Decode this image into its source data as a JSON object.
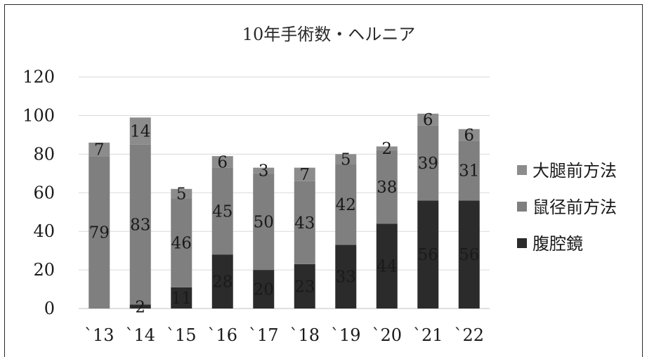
{
  "chart_data": {
    "type": "bar",
    "stacked": true,
    "title": "10年手術数・ヘルニア",
    "categories": [
      "`13",
      "`14",
      "`15",
      "`16",
      "`17",
      "`18",
      "`19",
      "`20",
      "`21",
      "`22"
    ],
    "series": [
      {
        "name": "腹腔鏡",
        "values": [
          0,
          2,
          11,
          28,
          20,
          23,
          33,
          44,
          56,
          56
        ],
        "color": "#2b2b2b"
      },
      {
        "name": "鼠径前方法",
        "values": [
          79,
          83,
          46,
          45,
          50,
          43,
          42,
          38,
          39,
          31
        ],
        "color": "#7f7f7f"
      },
      {
        "name": "大腿前方法",
        "values": [
          7,
          14,
          5,
          6,
          3,
          7,
          5,
          2,
          6,
          6
        ],
        "color": "#8c8c8c"
      }
    ],
    "data_labels": {
      "腹腔鏡": [
        "",
        "2",
        "11",
        "28",
        "20",
        "23",
        "33",
        "44",
        "56",
        "56"
      ],
      "鼠径前方法": [
        "79",
        "83",
        "46",
        "45",
        "50",
        "43",
        "42",
        "38",
        "39",
        "31"
      ],
      "大腿前方法": [
        "7",
        "14",
        "5",
        "6",
        "3",
        "7",
        "5",
        "2",
        "6",
        "6"
      ]
    },
    "legend_order": [
      "大腿前方法",
      "鼠径前方法",
      "腹腔鏡"
    ],
    "legend_position": "right",
    "ylim": [
      0,
      120
    ],
    "yticks": [
      0,
      20,
      40,
      60,
      80,
      100,
      120
    ],
    "grid": true
  }
}
